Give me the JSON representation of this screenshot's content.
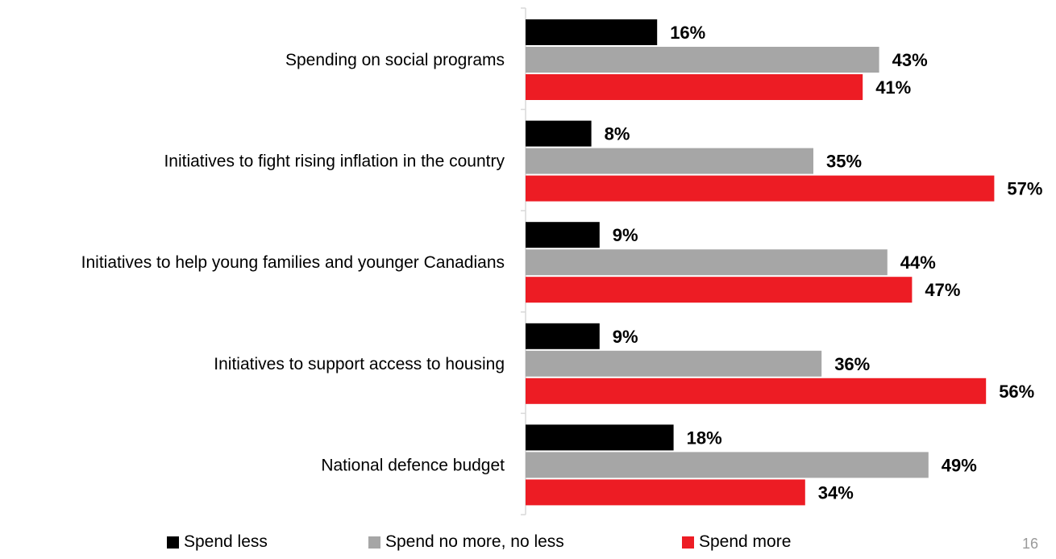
{
  "chart_data": {
    "type": "bar",
    "orientation": "horizontal",
    "categories": [
      "Spending on social programs",
      "Initiatives to fight rising inflation in the country",
      "Initiatives to help young families and younger Canadians",
      "Initiatives to support access to housing",
      "National defence budget"
    ],
    "series": [
      {
        "name": "Spend less",
        "color": "#000000",
        "values": [
          16,
          8,
          9,
          9,
          18
        ]
      },
      {
        "name": "Spend no more, no less",
        "color": "#a6a6a6",
        "values": [
          43,
          35,
          44,
          36,
          49
        ]
      },
      {
        "name": "Spend more",
        "color": "#ed1c24",
        "values": [
          41,
          57,
          47,
          56,
          34
        ]
      }
    ],
    "value_suffix": "%",
    "xlim": [
      0,
      60
    ],
    "grid": false,
    "legend_position": "bottom",
    "title": "",
    "xlabel": "",
    "ylabel": ""
  },
  "page_number": "16"
}
